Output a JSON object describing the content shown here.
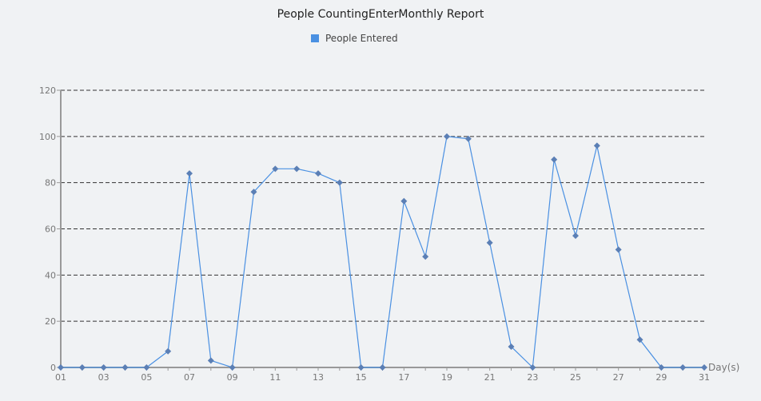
{
  "chart_data": {
    "type": "line",
    "title": "People CountingEnterMonthly Report",
    "xlabel": "Day(s)",
    "ylabel": "",
    "x": [
      "01",
      "02",
      "03",
      "04",
      "05",
      "06",
      "07",
      "08",
      "09",
      "10",
      "11",
      "12",
      "13",
      "14",
      "15",
      "16",
      "17",
      "18",
      "19",
      "20",
      "21",
      "22",
      "23",
      "24",
      "25",
      "26",
      "27",
      "28",
      "29",
      "30",
      "31"
    ],
    "x_tick_labels": [
      "01",
      "03",
      "05",
      "07",
      "09",
      "11",
      "13",
      "15",
      "17",
      "19",
      "21",
      "23",
      "25",
      "27",
      "29",
      "31"
    ],
    "series": [
      {
        "name": "People Entered",
        "values": [
          0,
          0,
          0,
          0,
          0,
          7,
          84,
          3,
          0,
          76,
          86,
          86,
          84,
          80,
          0,
          0,
          72,
          48,
          100,
          99,
          54,
          9,
          0,
          90,
          57,
          96,
          51,
          12,
          0,
          0,
          0
        ]
      }
    ],
    "ylim": [
      0,
      120
    ],
    "y_ticks": [
      0,
      20,
      40,
      60,
      80,
      100,
      120
    ],
    "grid": true,
    "legend_position": "top-center"
  },
  "colors": {
    "line": "#4a90e2",
    "marker": "#5b7fb5",
    "grid": "#333333",
    "axis": "#999999",
    "tick_text": "#777777"
  }
}
